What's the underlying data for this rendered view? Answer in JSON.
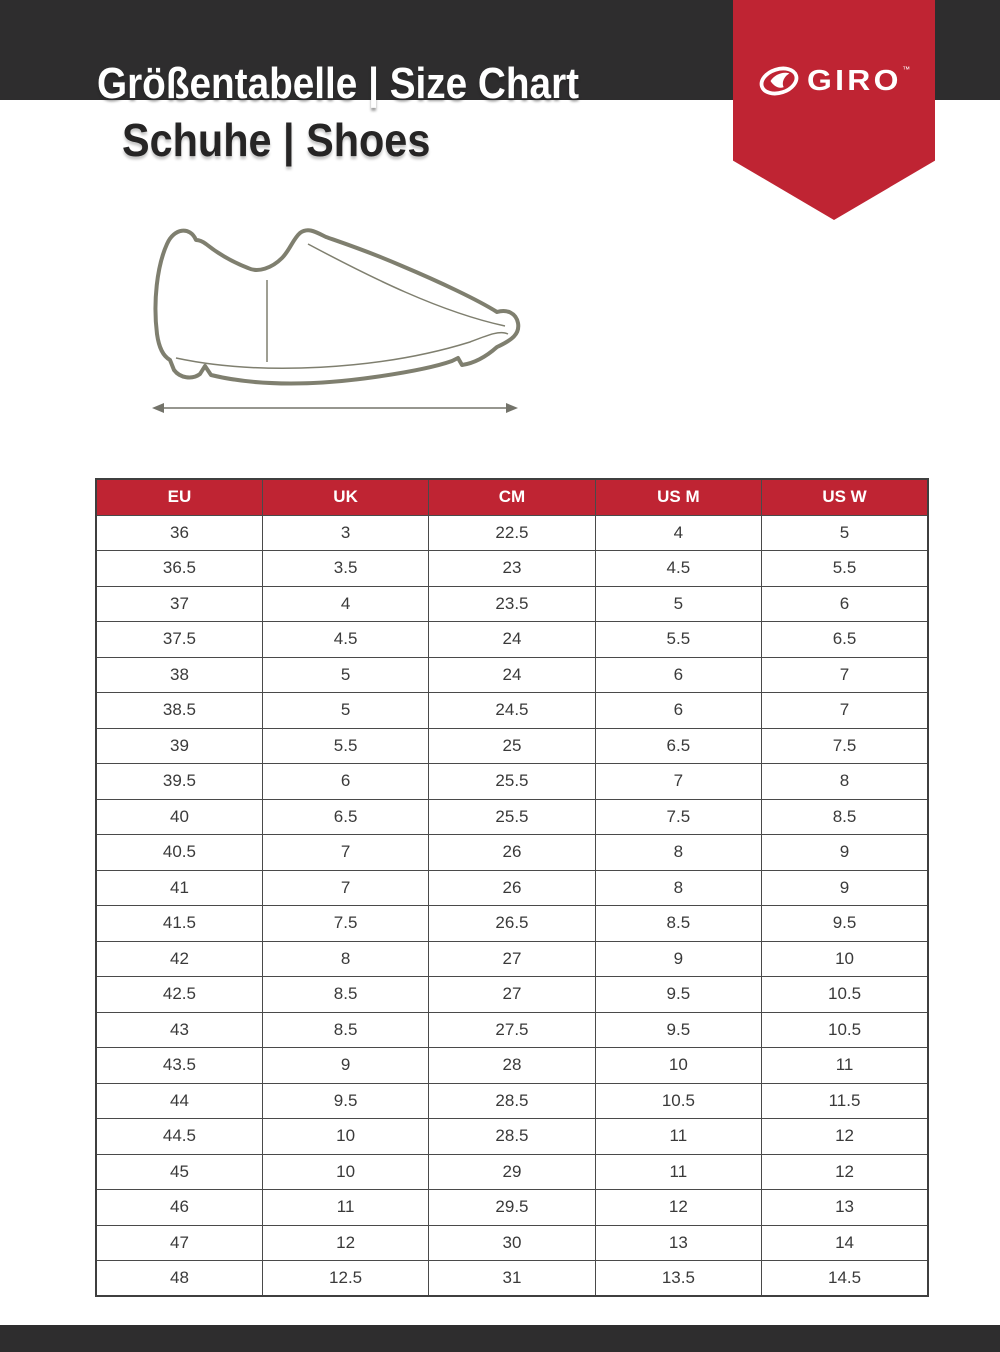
{
  "page": {
    "title": "Größentabelle | Size Chart",
    "subtitle": "Schuhe | Shoes"
  },
  "brand": {
    "name": "GIRO",
    "trademark": "™"
  },
  "colors": {
    "accent_red": "#bf2433",
    "header_black": "#2e2d2e",
    "table_border": "#4a4a4a",
    "cell_text": "#3a3a3a",
    "shoe_outline": "#7f7f6f",
    "arrow_gray": "#73736a"
  },
  "size_table": {
    "columns": [
      "EU",
      "UK",
      "CM",
      "US M",
      "US W"
    ],
    "rows": [
      [
        "36",
        "3",
        "22.5",
        "4",
        "5"
      ],
      [
        "36.5",
        "3.5",
        "23",
        "4.5",
        "5.5"
      ],
      [
        "37",
        "4",
        "23.5",
        "5",
        "6"
      ],
      [
        "37.5",
        "4.5",
        "24",
        "5.5",
        "6.5"
      ],
      [
        "38",
        "5",
        "24",
        "6",
        "7"
      ],
      [
        "38.5",
        "5",
        "24.5",
        "6",
        "7"
      ],
      [
        "39",
        "5.5",
        "25",
        "6.5",
        "7.5"
      ],
      [
        "39.5",
        "6",
        "25.5",
        "7",
        "8"
      ],
      [
        "40",
        "6.5",
        "25.5",
        "7.5",
        "8.5"
      ],
      [
        "40.5",
        "7",
        "26",
        "8",
        "9"
      ],
      [
        "41",
        "7",
        "26",
        "8",
        "9"
      ],
      [
        "41.5",
        "7.5",
        "26.5",
        "8.5",
        "9.5"
      ],
      [
        "42",
        "8",
        "27",
        "9",
        "10"
      ],
      [
        "42.5",
        "8.5",
        "27",
        "9.5",
        "10.5"
      ],
      [
        "43",
        "8.5",
        "27.5",
        "9.5",
        "10.5"
      ],
      [
        "43.5",
        "9",
        "28",
        "10",
        "11"
      ],
      [
        "44",
        "9.5",
        "28.5",
        "10.5",
        "11.5"
      ],
      [
        "44.5",
        "10",
        "28.5",
        "11",
        "12"
      ],
      [
        "45",
        "10",
        "29",
        "11",
        "12"
      ],
      [
        "46",
        "11",
        "29.5",
        "12",
        "13"
      ],
      [
        "47",
        "12",
        "30",
        "13",
        "14"
      ],
      [
        "48",
        "12.5",
        "31",
        "13.5",
        "14.5"
      ]
    ]
  }
}
